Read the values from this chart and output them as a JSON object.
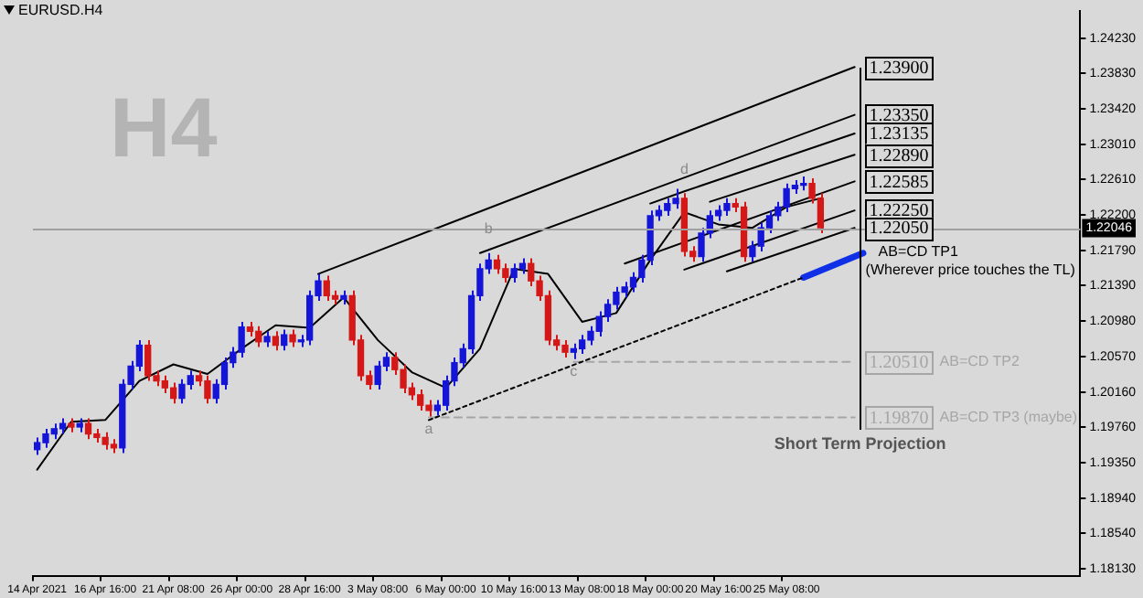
{
  "chart_data": {
    "type": "candlestick",
    "title": "EURUSD.H4",
    "categories": [
      "14 Apr 2021",
      null,
      null,
      null,
      null,
      null,
      null,
      null,
      "16 Apr 16:00",
      null,
      null,
      null,
      null,
      null,
      null,
      null,
      "21 Apr 08:00",
      null,
      null,
      null,
      null,
      null,
      null,
      null,
      "26 Apr 00:00",
      null,
      null,
      null,
      null,
      null,
      null,
      null,
      "28 Apr 16:00",
      null,
      null,
      null,
      null,
      null,
      null,
      null,
      "3 May 08:00",
      null,
      null,
      null,
      null,
      null,
      null,
      null,
      "6 May 00:00",
      null,
      null,
      null,
      null,
      null,
      null,
      null,
      "10 May 16:00",
      null,
      null,
      null,
      null,
      null,
      null,
      null,
      "13 May 08:00",
      null,
      null,
      null,
      null,
      null,
      null,
      null,
      "18 May 00:00",
      null,
      null,
      null,
      null,
      null,
      null,
      null,
      "20 May 16:00",
      null,
      null,
      null,
      null,
      null,
      null,
      null,
      "25 May 08:00",
      null,
      null,
      null,
      null,
      null,
      null,
      null,
      null,
      null,
      null,
      null,
      null,
      null,
      null,
      null,
      null,
      null,
      null,
      null,
      null,
      null,
      null,
      null,
      null,
      null,
      null,
      null,
      null,
      null,
      null,
      null,
      null,
      null,
      null
    ],
    "ohlc": [
      [
        1.195,
        1.1964,
        1.1944,
        1.1958
      ],
      [
        1.1958,
        1.1974,
        1.1952,
        1.1968
      ],
      [
        1.1968,
        1.198,
        1.1962,
        1.1974
      ],
      [
        1.1974,
        1.1986,
        1.1968,
        1.198
      ],
      [
        1.198,
        1.1986,
        1.197,
        1.1976
      ],
      [
        1.1976,
        1.1986,
        1.197,
        1.198
      ],
      [
        1.198,
        1.1986,
        1.1962,
        1.1968
      ],
      [
        1.1968,
        1.1974,
        1.1958,
        1.1964
      ],
      [
        1.1964,
        1.197,
        1.195,
        1.1956
      ],
      [
        1.1956,
        1.1962,
        1.1946,
        1.1952
      ],
      [
        1.1952,
        1.2031,
        1.1946,
        1.2025
      ],
      [
        1.2025,
        1.2052,
        1.2019,
        1.2046
      ],
      [
        1.2046,
        1.2076,
        1.204,
        1.207
      ],
      [
        1.207,
        1.2076,
        1.2029,
        1.2035
      ],
      [
        1.2035,
        1.2041,
        1.2023,
        1.2029
      ],
      [
        1.2029,
        1.2035,
        1.2015,
        1.2021
      ],
      [
        1.2021,
        1.2027,
        1.2003,
        1.2009
      ],
      [
        1.2009,
        1.2031,
        1.2003,
        1.2025
      ],
      [
        1.2025,
        1.2041,
        1.2019,
        1.2035
      ],
      [
        1.2035,
        1.2041,
        1.2023,
        1.2029
      ],
      [
        1.2029,
        1.2035,
        1.2003,
        1.2009
      ],
      [
        1.2009,
        1.2031,
        1.2003,
        1.2025
      ],
      [
        1.2025,
        1.2056,
        1.2019,
        1.205
      ],
      [
        1.205,
        1.2068,
        1.2044,
        1.2062
      ],
      [
        1.2062,
        1.2097,
        1.2056,
        1.2091
      ],
      [
        1.2091,
        1.2097,
        1.208,
        1.2086
      ],
      [
        1.2086,
        1.2092,
        1.2068,
        1.2074
      ],
      [
        1.2074,
        1.2086,
        1.2068,
        1.208
      ],
      [
        1.208,
        1.2086,
        1.2064,
        1.207
      ],
      [
        1.207,
        1.2088,
        1.2064,
        1.2082
      ],
      [
        1.2082,
        1.2088,
        1.2068,
        1.2074
      ],
      [
        1.2074,
        1.2082,
        1.2068,
        1.2076
      ],
      [
        1.2076,
        1.2133,
        1.207,
        1.2127
      ],
      [
        1.2127,
        1.2152,
        1.2121,
        1.2144
      ],
      [
        1.2144,
        1.215,
        1.2121,
        1.2127
      ],
      [
        1.2127,
        1.2133,
        1.2117,
        1.2123
      ],
      [
        1.2123,
        1.2133,
        1.2117,
        1.2127
      ],
      [
        1.2127,
        1.2133,
        1.207,
        1.2076
      ],
      [
        1.2076,
        1.2082,
        1.2029,
        1.2035
      ],
      [
        1.2035,
        1.2041,
        1.2019,
        1.2025
      ],
      [
        1.2025,
        1.2052,
        1.2019,
        1.2046
      ],
      [
        1.2046,
        1.2062,
        1.204,
        1.2056
      ],
      [
        1.2056,
        1.2062,
        1.2036,
        1.2042
      ],
      [
        1.2042,
        1.2048,
        1.2015,
        1.2021
      ],
      [
        1.2021,
        1.2027,
        1.2007,
        1.2013
      ],
      [
        1.2013,
        1.2019,
        1.1995,
        1.2001
      ],
      [
        1.2001,
        1.2007,
        1.1988,
        1.1995
      ],
      [
        1.1995,
        1.2007,
        1.1989,
        1.2001
      ],
      [
        1.2001,
        1.2035,
        1.1995,
        1.2029
      ],
      [
        1.2029,
        1.2056,
        1.2023,
        1.205
      ],
      [
        1.205,
        1.2072,
        1.2044,
        1.2066
      ],
      [
        1.2066,
        1.2133,
        1.206,
        1.2127
      ],
      [
        1.2127,
        1.2164,
        1.2121,
        1.2158
      ],
      [
        1.2158,
        1.2176,
        1.2152,
        1.2168
      ],
      [
        1.2168,
        1.2174,
        1.2152,
        1.2158
      ],
      [
        1.2158,
        1.2164,
        1.2142,
        1.2148
      ],
      [
        1.2148,
        1.2164,
        1.2142,
        1.2158
      ],
      [
        1.2158,
        1.217,
        1.2152,
        1.2164
      ],
      [
        1.2164,
        1.217,
        1.2138,
        1.2144
      ],
      [
        1.2144,
        1.215,
        1.2121,
        1.2127
      ],
      [
        1.2127,
        1.2133,
        1.207,
        1.2076
      ],
      [
        1.2076,
        1.2082,
        1.2064,
        1.207
      ],
      [
        1.207,
        1.2076,
        1.2056,
        1.2062
      ],
      [
        1.2062,
        1.2072,
        1.2054,
        1.2066
      ],
      [
        1.2066,
        1.2082,
        1.206,
        1.2076
      ],
      [
        1.2076,
        1.2092,
        1.207,
        1.2086
      ],
      [
        1.2086,
        1.2109,
        1.208,
        1.2103
      ],
      [
        1.2103,
        1.2123,
        1.2097,
        1.2117
      ],
      [
        1.2117,
        1.2137,
        1.2111,
        1.2131
      ],
      [
        1.2131,
        1.2143,
        1.2125,
        1.2137
      ],
      [
        1.2137,
        1.2154,
        1.2131,
        1.2148
      ],
      [
        1.2148,
        1.2174,
        1.2142,
        1.2168
      ],
      [
        1.2168,
        1.2225,
        1.2162,
        1.2219
      ],
      [
        1.2219,
        1.2231,
        1.2213,
        1.2225
      ],
      [
        1.2225,
        1.2239,
        1.2219,
        1.2233
      ],
      [
        1.2233,
        1.225,
        1.2227,
        1.2239
      ],
      [
        1.2239,
        1.2245,
        1.2172,
        1.2178
      ],
      [
        1.2178,
        1.2184,
        1.2166,
        1.2172
      ],
      [
        1.2172,
        1.2205,
        1.2166,
        1.2199
      ],
      [
        1.2199,
        1.2225,
        1.2193,
        1.2219
      ],
      [
        1.2219,
        1.2231,
        1.2213,
        1.2225
      ],
      [
        1.2225,
        1.2239,
        1.2219,
        1.2233
      ],
      [
        1.2233,
        1.2239,
        1.2223,
        1.2229
      ],
      [
        1.2229,
        1.2235,
        1.2166,
        1.2172
      ],
      [
        1.2172,
        1.219,
        1.2166,
        1.2184
      ],
      [
        1.2184,
        1.2211,
        1.2178,
        1.2205
      ],
      [
        1.2205,
        1.2225,
        1.2199,
        1.2219
      ],
      [
        1.2219,
        1.2235,
        1.2213,
        1.2229
      ],
      [
        1.2229,
        1.2256,
        1.2223,
        1.225
      ],
      [
        1.225,
        1.226,
        1.2244,
        1.2254
      ],
      [
        1.2254,
        1.2264,
        1.2248,
        1.2256
      ],
      [
        1.2256,
        1.2262,
        1.2233,
        1.2239
      ],
      [
        1.2239,
        1.2245,
        1.2199,
        1.2205
      ],
      null,
      null,
      null,
      null,
      null,
      null,
      null,
      null,
      null,
      null,
      null,
      null,
      null,
      null,
      null,
      null,
      null,
      null,
      null,
      null,
      null,
      null,
      null,
      null,
      null,
      null,
      null,
      null,
      null,
      null
    ],
    "value_labels": [
      null,
      null,
      null,
      null,
      null,
      null,
      null,
      null,
      null,
      null,
      null,
      null,
      null,
      null,
      null,
      null,
      null,
      null,
      null,
      null,
      null,
      null,
      null,
      null,
      null,
      null,
      null,
      null,
      null,
      null,
      null,
      null,
      null,
      null,
      null,
      null,
      null,
      null,
      null,
      null,
      null,
      null,
      null,
      null,
      null,
      null,
      "a",
      null,
      null,
      null,
      null,
      null,
      null,
      "b",
      null,
      null,
      null,
      null,
      null,
      null,
      null,
      null,
      null,
      "c",
      null,
      null,
      null,
      null,
      null,
      null,
      null,
      null,
      null,
      null,
      null,
      null,
      "d",
      null,
      null,
      null,
      null,
      null,
      null,
      null,
      null,
      null,
      null,
      null,
      null,
      null,
      null,
      null,
      null,
      null,
      null,
      null,
      null,
      null,
      null,
      null,
      null,
      null,
      null,
      null,
      null,
      null,
      null,
      null,
      null,
      null,
      null,
      null,
      null,
      null,
      null,
      null,
      null,
      null,
      null,
      null,
      null,
      null,
      null
    ],
    "series": [
      {
        "type": "line",
        "color": "#000000",
        "line_style": "solid",
        "values": [
          1.1927,
          null,
          null,
          null,
          1.1982,
          null,
          null,
          null,
          1.1984,
          null,
          null,
          null,
          1.2029,
          null,
          null,
          null,
          1.2048,
          null,
          null,
          null,
          1.2037,
          null,
          null,
          null,
          1.2066,
          null,
          null,
          null,
          1.2093,
          null,
          null,
          null,
          1.209,
          null,
          null,
          null,
          1.2125,
          null,
          null,
          null,
          1.2076,
          null,
          null,
          null,
          1.2039,
          null,
          null,
          null,
          1.2021,
          null,
          null,
          null,
          1.2066,
          null,
          null,
          null,
          1.2158,
          null,
          null,
          null,
          1.2152,
          null,
          null,
          null,
          1.2097,
          null,
          null,
          null,
          1.2107,
          null,
          null,
          null,
          1.2168,
          null,
          null,
          null,
          1.2223,
          null,
          null,
          null,
          1.2209,
          null,
          null,
          null,
          1.2205,
          null,
          null,
          null,
          1.2229,
          null,
          null,
          null,
          1.2239,
          null,
          null,
          null,
          null,
          null,
          null,
          null,
          null,
          null,
          null,
          null,
          null,
          null,
          null,
          null,
          null,
          null,
          null,
          null,
          null,
          null,
          null,
          null,
          null,
          null,
          null,
          null,
          null,
          null,
          null
        ]
      },
      {
        "type": "line",
        "color": "#000000",
        "line_style": "solid",
        "values": [
          null,
          null,
          null,
          null,
          null,
          null,
          null,
          null,
          null,
          null,
          null,
          null,
          null,
          null,
          null,
          null,
          null,
          null,
          null,
          null,
          null,
          null,
          null,
          null,
          null,
          null,
          null,
          null,
          null,
          null,
          null,
          null,
          null,
          1.2152,
          null,
          null,
          null,
          null,
          null,
          null,
          null,
          null,
          null,
          null,
          null,
          null,
          null,
          null,
          null,
          null,
          null,
          null,
          null,
          null,
          null,
          null,
          null,
          null,
          null,
          null,
          null,
          null,
          null,
          null,
          null,
          null,
          null,
          null,
          null,
          null,
          null,
          null,
          null,
          null,
          null,
          null,
          null,
          null,
          null,
          null,
          null,
          null,
          null,
          null,
          null,
          null,
          null,
          null,
          null,
          null,
          null,
          null,
          null,
          null,
          null,
          null,
          1.239,
          null,
          null,
          null,
          null,
          null,
          null,
          null,
          null,
          null,
          null,
          null,
          null,
          null,
          null,
          null,
          null,
          null,
          null,
          null,
          null,
          null,
          null,
          null,
          null,
          null,
          null
        ]
      },
      {
        "type": "line",
        "color": "#000000",
        "line_style": "solid",
        "values": [
          null,
          null,
          null,
          null,
          null,
          null,
          null,
          null,
          null,
          null,
          null,
          null,
          null,
          null,
          null,
          null,
          null,
          null,
          null,
          null,
          null,
          null,
          null,
          null,
          null,
          null,
          null,
          null,
          null,
          null,
          null,
          null,
          null,
          null,
          null,
          null,
          null,
          null,
          null,
          null,
          null,
          null,
          null,
          null,
          null,
          null,
          null,
          null,
          null,
          null,
          null,
          null,
          1.2176,
          null,
          null,
          null,
          null,
          null,
          null,
          null,
          null,
          null,
          null,
          null,
          null,
          null,
          null,
          null,
          null,
          null,
          null,
          null,
          null,
          null,
          null,
          null,
          null,
          null,
          null,
          null,
          null,
          null,
          null,
          null,
          null,
          null,
          null,
          null,
          null,
          null,
          null,
          null,
          null,
          null,
          null,
          null,
          1.2335,
          null,
          null,
          null,
          null,
          null,
          null,
          null,
          null,
          null,
          null,
          null,
          null,
          null,
          null,
          null,
          null,
          null,
          null,
          null,
          null,
          null,
          null,
          null,
          null,
          null,
          null
        ]
      },
      {
        "type": "line",
        "color": "#000000",
        "line_style": "solid",
        "values": [
          null,
          null,
          null,
          null,
          null,
          null,
          null,
          null,
          null,
          null,
          null,
          null,
          null,
          null,
          null,
          null,
          null,
          null,
          null,
          null,
          null,
          null,
          null,
          null,
          null,
          null,
          null,
          null,
          null,
          null,
          null,
          null,
          null,
          null,
          null,
          null,
          null,
          null,
          null,
          null,
          null,
          null,
          null,
          null,
          null,
          null,
          null,
          null,
          null,
          null,
          null,
          null,
          null,
          null,
          null,
          null,
          null,
          null,
          null,
          null,
          null,
          null,
          null,
          null,
          null,
          null,
          null,
          null,
          null,
          null,
          null,
          null,
          1.2233,
          null,
          null,
          null,
          1.2247,
          null,
          null,
          null,
          null,
          null,
          null,
          null,
          null,
          null,
          null,
          null,
          null,
          null,
          null,
          null,
          null,
          null,
          null,
          null,
          1.23135,
          null,
          null,
          null,
          null,
          null,
          null,
          null,
          null,
          null,
          null,
          null,
          null,
          null,
          null,
          null,
          null,
          null,
          null,
          null,
          null,
          null,
          null,
          null,
          null,
          null,
          null
        ]
      },
      {
        "type": "line",
        "color": "#000000",
        "line_style": "solid",
        "values": [
          null,
          null,
          null,
          null,
          null,
          null,
          null,
          null,
          null,
          null,
          null,
          null,
          null,
          null,
          null,
          null,
          null,
          null,
          null,
          null,
          null,
          null,
          null,
          null,
          null,
          null,
          null,
          null,
          null,
          null,
          null,
          null,
          null,
          null,
          null,
          null,
          null,
          null,
          null,
          null,
          null,
          null,
          null,
          null,
          null,
          null,
          null,
          null,
          null,
          null,
          null,
          null,
          null,
          null,
          null,
          null,
          null,
          null,
          null,
          null,
          null,
          null,
          null,
          null,
          null,
          null,
          null,
          null,
          null,
          null,
          null,
          null,
          null,
          null,
          null,
          null,
          null,
          null,
          null,
          1.2235,
          null,
          null,
          null,
          null,
          null,
          null,
          null,
          null,
          null,
          null,
          null,
          null,
          null,
          null,
          null,
          null,
          1.2289,
          null,
          null,
          null,
          null,
          null,
          null,
          null,
          null,
          null,
          null,
          null,
          null,
          null,
          null,
          null,
          null,
          null,
          null,
          null,
          null,
          null,
          null,
          null,
          null,
          null,
          null
        ]
      },
      {
        "type": "line",
        "color": "#000000",
        "line_style": "solid",
        "values": [
          null,
          null,
          null,
          null,
          null,
          null,
          null,
          null,
          null,
          null,
          null,
          null,
          null,
          null,
          null,
          null,
          null,
          null,
          null,
          null,
          null,
          null,
          null,
          null,
          null,
          null,
          null,
          null,
          null,
          null,
          null,
          null,
          null,
          null,
          null,
          null,
          null,
          null,
          null,
          null,
          null,
          null,
          null,
          null,
          null,
          null,
          null,
          null,
          null,
          null,
          null,
          null,
          null,
          null,
          null,
          null,
          null,
          null,
          null,
          null,
          null,
          null,
          null,
          null,
          null,
          null,
          null,
          null,
          null,
          1.2164,
          null,
          null,
          null,
          null,
          null,
          null,
          null,
          null,
          null,
          null,
          null,
          null,
          null,
          null,
          null,
          null,
          null,
          null,
          null,
          null,
          null,
          null,
          null,
          null,
          null,
          null,
          1.22585,
          null,
          null,
          null,
          null,
          null,
          null,
          null,
          null,
          null,
          null,
          null,
          null,
          null,
          null,
          null,
          null,
          null,
          null,
          null,
          null,
          null,
          null,
          null,
          null,
          null,
          null
        ]
      },
      {
        "type": "line",
        "color": "#000000",
        "line_style": "solid",
        "values": [
          null,
          null,
          null,
          null,
          null,
          null,
          null,
          null,
          null,
          null,
          null,
          null,
          null,
          null,
          null,
          null,
          null,
          null,
          null,
          null,
          null,
          null,
          null,
          null,
          null,
          null,
          null,
          null,
          null,
          null,
          null,
          null,
          null,
          null,
          null,
          null,
          null,
          null,
          null,
          null,
          null,
          null,
          null,
          null,
          null,
          null,
          null,
          null,
          null,
          null,
          null,
          null,
          null,
          null,
          null,
          null,
          null,
          null,
          null,
          null,
          null,
          null,
          null,
          null,
          null,
          null,
          null,
          null,
          null,
          null,
          null,
          null,
          null,
          null,
          null,
          null,
          1.2157,
          null,
          null,
          null,
          null,
          null,
          null,
          null,
          null,
          null,
          null,
          null,
          null,
          null,
          null,
          null,
          null,
          null,
          null,
          null,
          1.2225,
          null,
          null,
          null,
          null,
          null,
          null,
          null,
          null,
          null,
          null,
          null,
          null,
          null,
          null,
          null,
          null,
          null,
          null,
          null,
          null,
          null,
          null,
          null,
          null,
          null,
          null
        ]
      },
      {
        "type": "line",
        "color": "#000000",
        "line_style": "solid",
        "values": [
          null,
          null,
          null,
          null,
          null,
          null,
          null,
          null,
          null,
          null,
          null,
          null,
          null,
          null,
          null,
          null,
          null,
          null,
          null,
          null,
          null,
          null,
          null,
          null,
          null,
          null,
          null,
          null,
          null,
          null,
          null,
          null,
          null,
          null,
          null,
          null,
          null,
          null,
          null,
          null,
          null,
          null,
          null,
          null,
          null,
          null,
          null,
          null,
          null,
          null,
          null,
          null,
          null,
          null,
          null,
          null,
          null,
          null,
          null,
          null,
          null,
          null,
          null,
          null,
          null,
          null,
          null,
          null,
          null,
          null,
          null,
          null,
          null,
          null,
          null,
          null,
          null,
          null,
          null,
          null,
          null,
          1.2155,
          null,
          null,
          null,
          null,
          null,
          null,
          null,
          null,
          null,
          null,
          null,
          null,
          null,
          null,
          1.2205,
          null,
          null,
          null,
          null,
          null,
          null,
          null,
          null,
          null,
          null,
          null,
          null,
          null,
          null,
          null,
          null,
          null,
          null,
          null,
          null,
          null,
          null,
          null,
          null,
          null,
          null
        ]
      },
      {
        "type": "line",
        "color": "#000000",
        "line_style": "dotted",
        "values": [
          null,
          null,
          null,
          null,
          null,
          null,
          null,
          null,
          null,
          null,
          null,
          null,
          null,
          null,
          null,
          null,
          null,
          null,
          null,
          null,
          null,
          null,
          null,
          null,
          null,
          null,
          null,
          null,
          null,
          null,
          null,
          null,
          null,
          null,
          null,
          null,
          null,
          null,
          null,
          null,
          null,
          null,
          null,
          null,
          null,
          null,
          1.1984,
          null,
          null,
          null,
          null,
          null,
          null,
          null,
          null,
          null,
          null,
          null,
          null,
          null,
          null,
          null,
          null,
          null,
          null,
          null,
          null,
          null,
          null,
          null,
          null,
          null,
          null,
          null,
          null,
          null,
          null,
          null,
          null,
          null,
          null,
          null,
          null,
          null,
          null,
          null,
          null,
          null,
          null,
          null,
          1.2148,
          null,
          null,
          null,
          null,
          null,
          null,
          null,
          null,
          null,
          null,
          null,
          null,
          null,
          null,
          null,
          null,
          null,
          null,
          null,
          null,
          null,
          null,
          null,
          null,
          null,
          null,
          null,
          null,
          null,
          null,
          null,
          null
        ]
      },
      {
        "type": "line",
        "color": "#1030e8",
        "line_style": "solid",
        "values": [
          null,
          null,
          null,
          null,
          null,
          null,
          null,
          null,
          null,
          null,
          null,
          null,
          null,
          null,
          null,
          null,
          null,
          null,
          null,
          null,
          null,
          null,
          null,
          null,
          null,
          null,
          null,
          null,
          null,
          null,
          null,
          null,
          null,
          null,
          null,
          null,
          null,
          null,
          null,
          null,
          null,
          null,
          null,
          null,
          null,
          null,
          null,
          null,
          null,
          null,
          null,
          null,
          null,
          null,
          null,
          null,
          null,
          null,
          null,
          null,
          null,
          null,
          null,
          null,
          null,
          null,
          null,
          null,
          null,
          null,
          null,
          null,
          null,
          null,
          null,
          null,
          null,
          null,
          null,
          null,
          null,
          null,
          null,
          null,
          null,
          null,
          null,
          null,
          null,
          null,
          1.2148,
          null,
          null,
          null,
          null,
          null,
          null,
          1.2176,
          null,
          null,
          null,
          null,
          null,
          null,
          null,
          null,
          null,
          null,
          null,
          null,
          null,
          null,
          null,
          null,
          null,
          null,
          null,
          null,
          null,
          null,
          null,
          null,
          null
        ]
      },
      {
        "type": "line",
        "color": "#a6a6a6",
        "line_style": "dashed",
        "values": [
          null,
          null,
          null,
          null,
          null,
          null,
          null,
          null,
          null,
          null,
          null,
          null,
          null,
          null,
          null,
          null,
          null,
          null,
          null,
          null,
          null,
          null,
          null,
          null,
          null,
          null,
          null,
          null,
          null,
          null,
          null,
          null,
          null,
          null,
          null,
          null,
          null,
          null,
          null,
          null,
          null,
          null,
          null,
          null,
          null,
          null,
          null,
          null,
          null,
          null,
          null,
          null,
          null,
          null,
          null,
          null,
          null,
          null,
          null,
          null,
          null,
          null,
          null,
          1.2051,
          null,
          null,
          null,
          null,
          null,
          null,
          null,
          null,
          null,
          null,
          null,
          null,
          null,
          null,
          null,
          null,
          null,
          null,
          null,
          null,
          null,
          null,
          null,
          null,
          null,
          null,
          null,
          null,
          null,
          null,
          null,
          null,
          1.2051,
          null,
          null,
          null,
          null,
          null,
          null,
          null,
          null,
          null,
          null,
          null,
          null,
          null,
          null,
          null,
          null,
          null,
          null,
          null,
          null,
          null,
          null,
          null,
          null,
          null,
          null
        ]
      },
      {
        "type": "line",
        "color": "#a6a6a6",
        "line_style": "dashed",
        "values": [
          null,
          null,
          null,
          null,
          null,
          null,
          null,
          null,
          null,
          null,
          null,
          null,
          null,
          null,
          null,
          null,
          null,
          null,
          null,
          null,
          null,
          null,
          null,
          null,
          null,
          null,
          null,
          null,
          null,
          null,
          null,
          null,
          null,
          null,
          null,
          null,
          null,
          null,
          null,
          null,
          null,
          null,
          null,
          null,
          null,
          null,
          1.1987,
          null,
          null,
          null,
          null,
          null,
          null,
          null,
          null,
          null,
          null,
          null,
          null,
          null,
          null,
          null,
          null,
          null,
          null,
          null,
          null,
          null,
          null,
          null,
          null,
          null,
          null,
          null,
          null,
          null,
          null,
          null,
          null,
          null,
          null,
          null,
          null,
          null,
          null,
          null,
          null,
          null,
          null,
          null,
          null,
          null,
          null,
          null,
          null,
          null,
          1.1987,
          null,
          null,
          null,
          null,
          null,
          null,
          null,
          null,
          null,
          null,
          null,
          null,
          null,
          null,
          null,
          null,
          null,
          null,
          null,
          null,
          null,
          null,
          null,
          null,
          null,
          null
        ]
      }
    ],
    "ylim": [
      1.1805,
      1.2454
    ],
    "yticks": [
      {
        "value": 1.2423,
        "label": "1.24230"
      },
      {
        "value": 1.2383,
        "label": "1.23830"
      },
      {
        "value": 1.2342,
        "label": "1.23420"
      },
      {
        "value": 1.2301,
        "label": "1.23010"
      },
      {
        "value": 1.2261,
        "label": "1.22610"
      },
      {
        "value": 1.222,
        "label": "1.22200"
      },
      {
        "value": 1.2179,
        "label": "1.21790"
      },
      {
        "value": 1.2139,
        "label": "1.21390"
      },
      {
        "value": 1.2098,
        "label": "1.20980"
      },
      {
        "value": 1.2057,
        "label": "1.20570"
      },
      {
        "value": 1.2016,
        "label": "1.20160"
      },
      {
        "value": 1.1976,
        "label": "1.19760"
      },
      {
        "value": 1.1935,
        "label": "1.19350"
      },
      {
        "value": 1.1894,
        "label": "1.18940"
      },
      {
        "value": 1.1854,
        "label": "1.18540"
      },
      {
        "value": 1.1813,
        "label": "1.18130"
      }
    ],
    "ref_lines": [
      {
        "axis": "y",
        "value": 1.22046,
        "label": "1.22046",
        "color": "#a0a0a0"
      }
    ],
    "annotations": [
      {
        "text": "1.23900",
        "y": 1.239
      },
      {
        "text": "1.23350",
        "y": 1.2335
      },
      {
        "text": "1.23135",
        "y": 1.23135
      },
      {
        "text": "1.22890",
        "y": 1.2289
      },
      {
        "text": "1.22585",
        "y": 1.22585
      },
      {
        "text": "1.22250",
        "y": 1.2225
      },
      {
        "text": "1.22050",
        "y": 1.2205
      },
      {
        "text": "1.20510",
        "y": 1.2051
      },
      {
        "text": "1.19870",
        "y": 1.1987
      },
      "Short Term Projection",
      "AB=CD TP1",
      "(Wherever price touches the TL)",
      "AB=CD TP2",
      "AB=CD TP3 (maybe)",
      "H4"
    ],
    "grid": false,
    "legend": false
  }
}
